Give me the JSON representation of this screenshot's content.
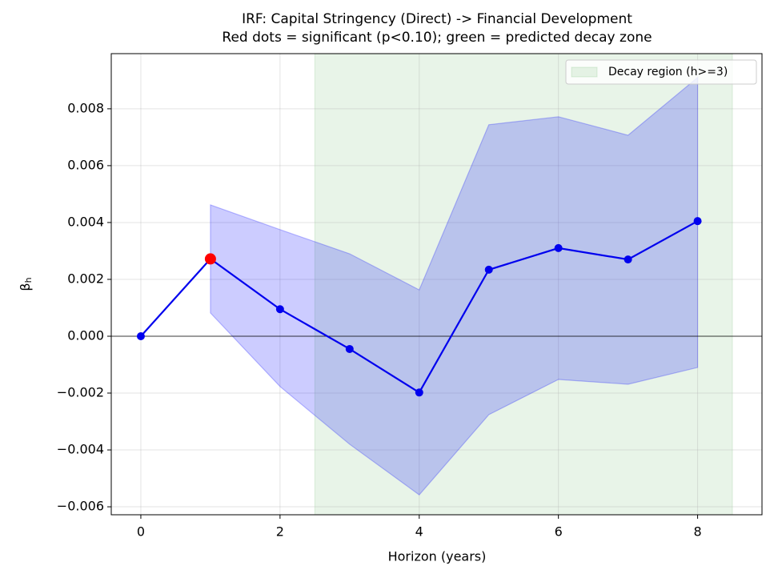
{
  "chart_data": {
    "type": "line",
    "title": "IRF: Capital Stringency (Direct) -> Financial Development",
    "subtitle": "Red dots = significant (p<0.10); green = predicted decay zone",
    "xlabel": "Horizon (years)",
    "ylabel": "β",
    "ylabel_subscript": "h",
    "x": [
      0,
      1,
      2,
      3,
      4,
      5,
      6,
      7,
      8
    ],
    "values": [
      0,
      0.00272,
      0.00095,
      -0.00045,
      -0.00198,
      0.00234,
      0.0031,
      0.0027,
      0.00405
    ],
    "upper": [
      null,
      0.00462,
      0.00375,
      0.0029,
      0.00163,
      0.00744,
      0.00772,
      0.00707,
      0.0091
    ],
    "lower": [
      null,
      0.00082,
      -0.00177,
      -0.0038,
      -0.00558,
      -0.00276,
      -0.00152,
      -0.00169,
      -0.0011
    ],
    "significant": [
      false,
      true,
      false,
      false,
      false,
      false,
      false,
      false,
      false
    ],
    "color": "#0000ee",
    "significant_color": "#ff0000",
    "band_color": "rgba(0,0,255,0.2)",
    "span": {
      "label": "Decay region (h>=3)",
      "xmin": 2.5,
      "xmax": 8.5,
      "color": "rgba(0,128,0,0.09)"
    },
    "hline": 0,
    "xlim": [
      -0.425,
      8.925
    ],
    "xticks": [
      0,
      2,
      4,
      6,
      8
    ],
    "ylim": [
      -0.00628,
      0.00994
    ],
    "yticks": [
      {
        "value": -0.006,
        "label": "−0.006"
      },
      {
        "value": -0.004,
        "label": "−0.004"
      },
      {
        "value": -0.002,
        "label": "−0.002"
      },
      {
        "value": 0,
        "label": "0.000"
      },
      {
        "value": 0.002,
        "label": "0.002"
      },
      {
        "value": 0.004,
        "label": "0.004"
      },
      {
        "value": 0.006,
        "label": "0.006"
      },
      {
        "value": 0.008,
        "label": "0.008"
      }
    ],
    "grid": true,
    "legend": "upper right"
  }
}
